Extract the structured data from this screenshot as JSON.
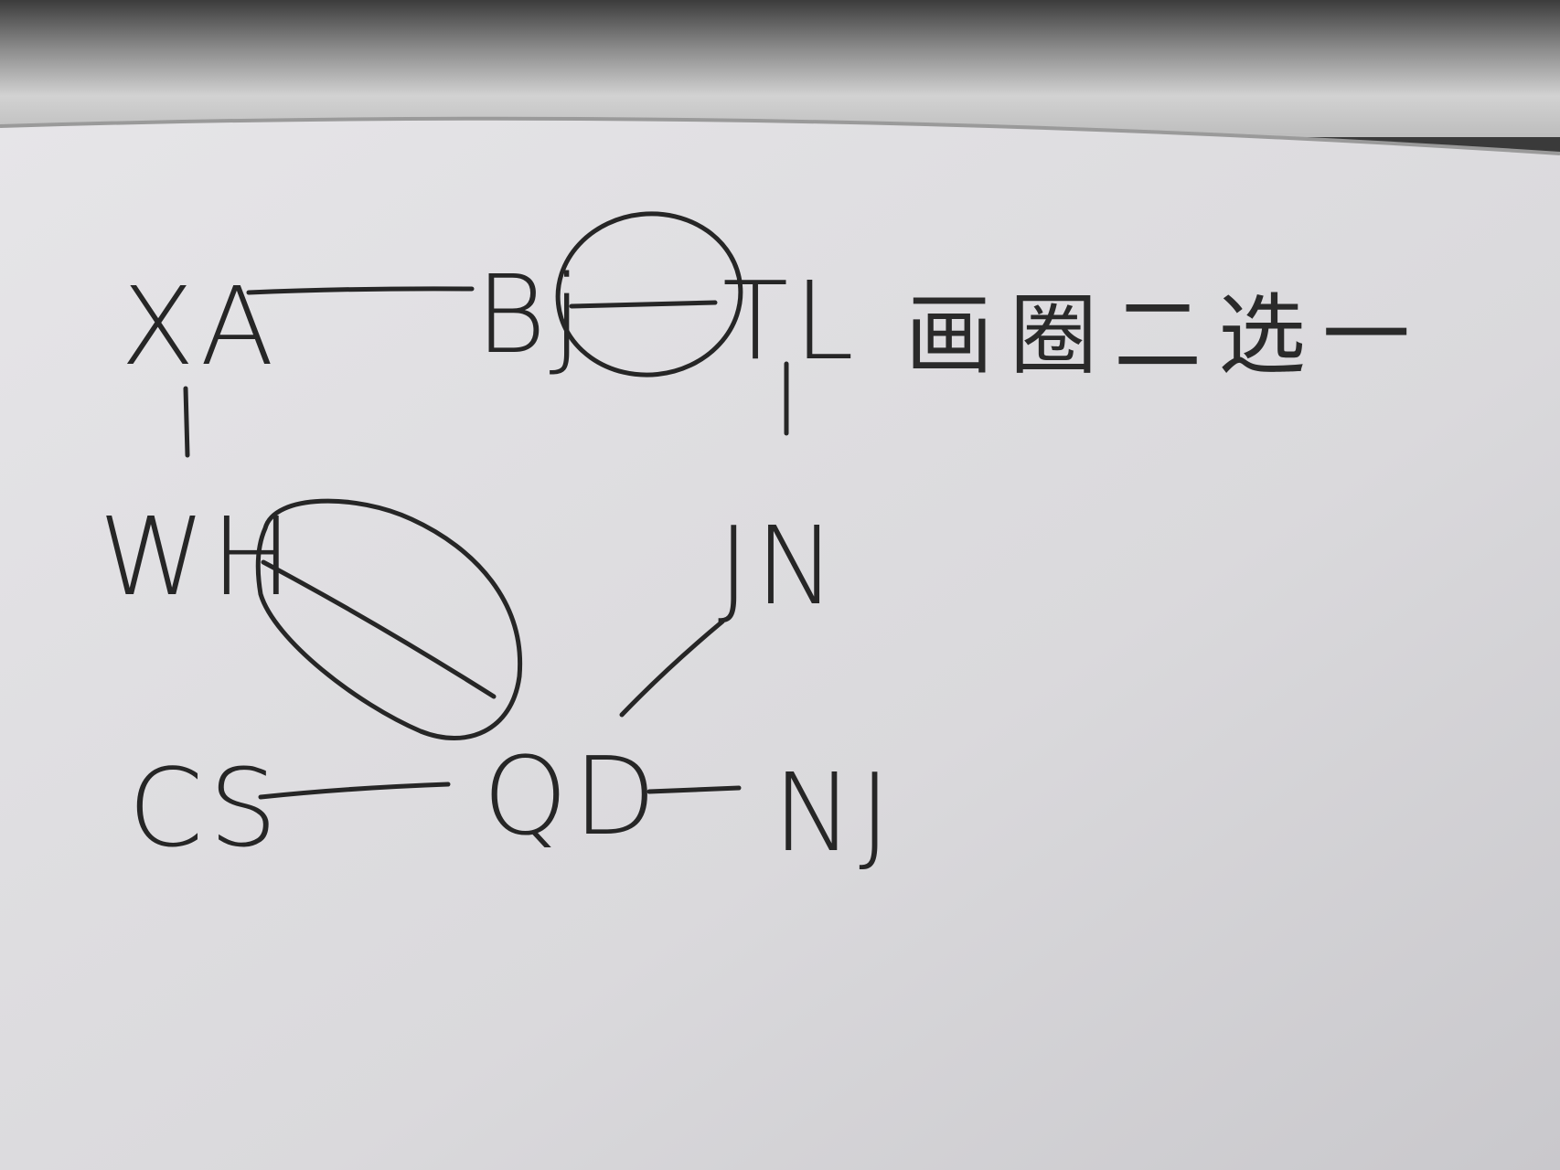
{
  "colors": {
    "paper": "#dedde0",
    "ink": "#262626",
    "background_top": "#4a4a4a"
  },
  "diagram": {
    "nodes": [
      {
        "id": "xa",
        "label": "XA"
      },
      {
        "id": "bj",
        "label": "Bj"
      },
      {
        "id": "tl",
        "label": "TL"
      },
      {
        "id": "wh",
        "label": "WH"
      },
      {
        "id": "jn",
        "label": "JN"
      },
      {
        "id": "cs",
        "label": "CS"
      },
      {
        "id": "qd",
        "label": "QD"
      },
      {
        "id": "nj",
        "label": "NJ"
      }
    ],
    "edges": [
      {
        "from": "xa",
        "to": "bj",
        "circled": false
      },
      {
        "from": "bj",
        "to": "tl",
        "circled": true
      },
      {
        "from": "xa",
        "to": "wh",
        "circled": false
      },
      {
        "from": "tl",
        "to": "jn",
        "circled": false
      },
      {
        "from": "wh",
        "to": "qd",
        "circled": true
      },
      {
        "from": "jn",
        "to": "qd",
        "circled": false
      },
      {
        "from": "cs",
        "to": "qd",
        "circled": false
      },
      {
        "from": "qd",
        "to": "nj",
        "circled": false
      }
    ],
    "note": "画圈二选一"
  }
}
